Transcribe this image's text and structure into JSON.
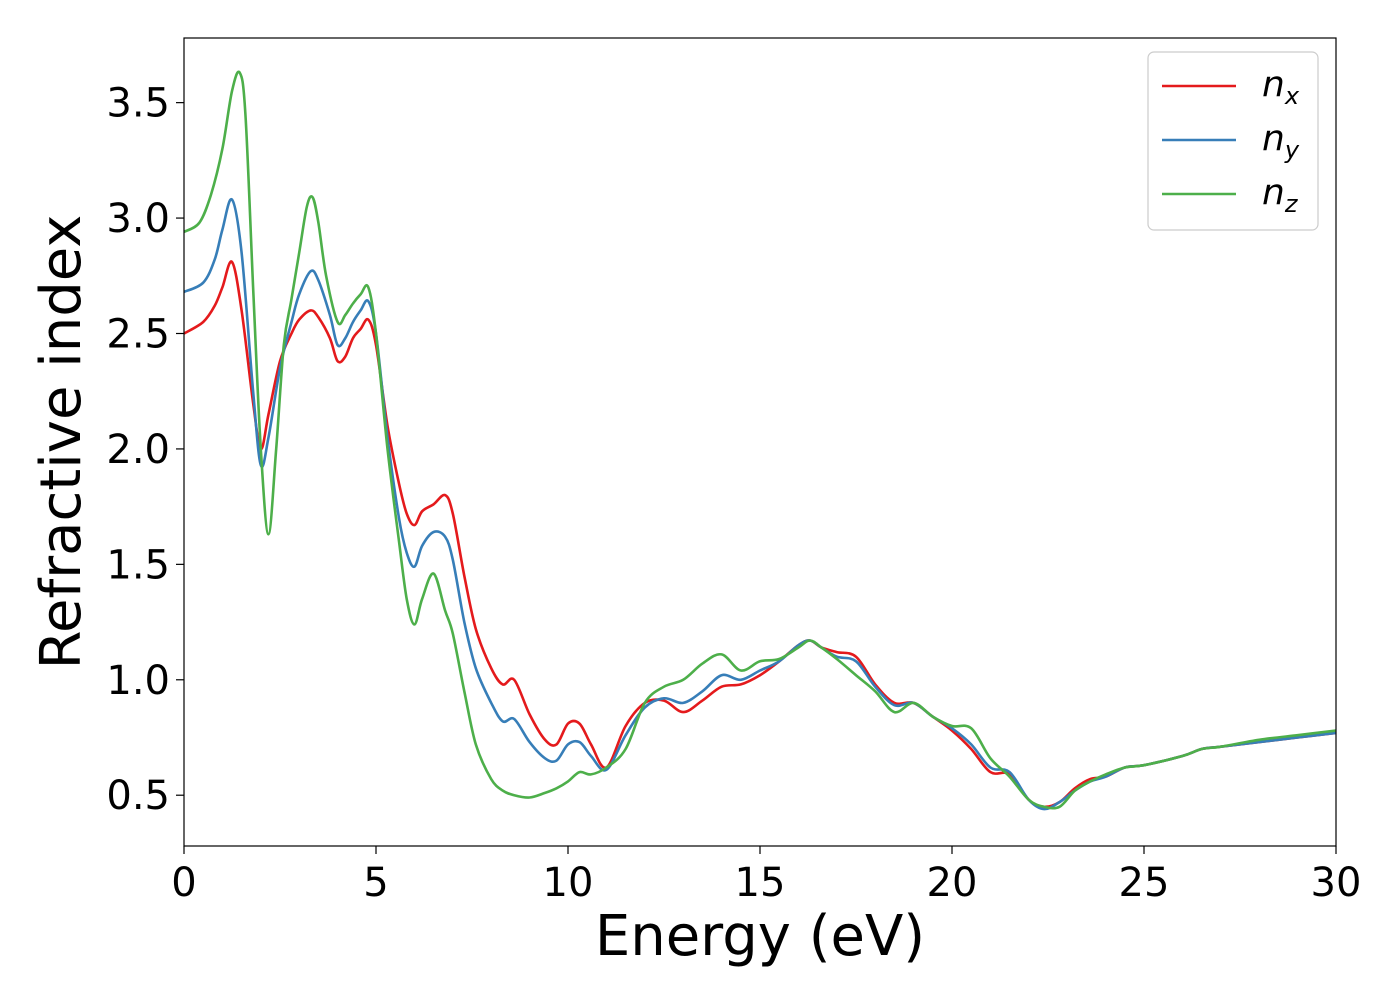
{
  "chart_data": {
    "type": "line",
    "xlabel": "Energy (eV)",
    "ylabel": "Refractive index",
    "xlim": [
      0,
      30
    ],
    "ylim": [
      0.28,
      3.78
    ],
    "xticks": [
      0,
      5,
      10,
      15,
      20,
      25,
      30
    ],
    "yticks": [
      0.5,
      1.0,
      1.5,
      2.0,
      2.5,
      3.0,
      3.5
    ],
    "grid": false,
    "legend_position": "top-right",
    "series": [
      {
        "name": "n",
        "subscript": "x",
        "color": "#e41a1c",
        "x": [
          0,
          0.5,
          0.8,
          1.0,
          1.25,
          1.5,
          1.8,
          2.0,
          2.2,
          2.5,
          2.8,
          3.0,
          3.3,
          3.5,
          3.8,
          4.0,
          4.2,
          4.4,
          4.6,
          4.8,
          5.0,
          5.3,
          5.6,
          5.8,
          6.0,
          6.2,
          6.5,
          6.8,
          7.0,
          7.3,
          7.6,
          8.0,
          8.3,
          8.6,
          9.0,
          9.4,
          9.7,
          10.0,
          10.3,
          10.6,
          11.0,
          11.5,
          12.0,
          12.5,
          13.0,
          13.5,
          14.0,
          14.5,
          15.0,
          15.5,
          16.0,
          16.3,
          16.6,
          17.0,
          17.5,
          18.0,
          18.5,
          19.0,
          19.5,
          20.0,
          20.5,
          21.0,
          21.5,
          22.0,
          22.4,
          22.8,
          23.2,
          23.6,
          24.0,
          24.5,
          25.0,
          26.0,
          26.5,
          27.0,
          28.0,
          29.0,
          30.0
        ],
        "y": [
          2.5,
          2.55,
          2.62,
          2.7,
          2.81,
          2.6,
          2.2,
          2.0,
          2.15,
          2.38,
          2.5,
          2.56,
          2.6,
          2.57,
          2.48,
          2.38,
          2.4,
          2.48,
          2.52,
          2.56,
          2.45,
          2.1,
          1.85,
          1.72,
          1.67,
          1.73,
          1.76,
          1.8,
          1.72,
          1.45,
          1.22,
          1.05,
          0.98,
          1.0,
          0.85,
          0.74,
          0.72,
          0.81,
          0.81,
          0.72,
          0.62,
          0.8,
          0.9,
          0.91,
          0.86,
          0.91,
          0.97,
          0.98,
          1.02,
          1.08,
          1.15,
          1.17,
          1.14,
          1.12,
          1.1,
          0.98,
          0.9,
          0.9,
          0.84,
          0.78,
          0.7,
          0.6,
          0.59,
          0.48,
          0.45,
          0.47,
          0.53,
          0.57,
          0.58,
          0.62,
          0.63,
          0.67,
          0.7,
          0.71,
          0.73,
          0.75,
          0.77
        ]
      },
      {
        "name": "n",
        "subscript": "y",
        "color": "#377eb8",
        "x": [
          0,
          0.5,
          0.8,
          1.0,
          1.25,
          1.5,
          1.8,
          2.0,
          2.2,
          2.5,
          2.8,
          3.0,
          3.3,
          3.5,
          3.8,
          4.0,
          4.2,
          4.4,
          4.6,
          4.8,
          5.0,
          5.3,
          5.6,
          5.8,
          6.0,
          6.2,
          6.5,
          6.8,
          7.0,
          7.3,
          7.6,
          8.0,
          8.3,
          8.6,
          9.0,
          9.4,
          9.7,
          10.0,
          10.3,
          10.6,
          11.0,
          11.5,
          12.0,
          12.5,
          13.0,
          13.5,
          14.0,
          14.5,
          15.0,
          15.5,
          16.0,
          16.3,
          16.6,
          17.0,
          17.5,
          18.0,
          18.5,
          19.0,
          19.5,
          20.0,
          20.5,
          21.0,
          21.5,
          22.0,
          22.4,
          22.8,
          23.2,
          23.6,
          24.0,
          24.5,
          25.0,
          26.0,
          26.5,
          27.0,
          28.0,
          29.0,
          30.0
        ],
        "y": [
          2.68,
          2.72,
          2.82,
          2.95,
          3.08,
          2.85,
          2.25,
          1.93,
          2.05,
          2.35,
          2.55,
          2.67,
          2.77,
          2.73,
          2.58,
          2.45,
          2.48,
          2.55,
          2.6,
          2.64,
          2.5,
          2.05,
          1.7,
          1.55,
          1.49,
          1.58,
          1.64,
          1.62,
          1.52,
          1.25,
          1.05,
          0.9,
          0.82,
          0.83,
          0.73,
          0.66,
          0.65,
          0.72,
          0.73,
          0.67,
          0.61,
          0.76,
          0.88,
          0.92,
          0.9,
          0.95,
          1.02,
          1.0,
          1.04,
          1.08,
          1.15,
          1.17,
          1.14,
          1.1,
          1.08,
          0.97,
          0.89,
          0.9,
          0.84,
          0.79,
          0.72,
          0.62,
          0.6,
          0.48,
          0.44,
          0.47,
          0.52,
          0.56,
          0.58,
          0.62,
          0.63,
          0.67,
          0.7,
          0.71,
          0.73,
          0.75,
          0.77
        ]
      },
      {
        "name": "n",
        "subscript": "z",
        "color": "#4daf4a",
        "x": [
          0,
          0.4,
          0.7,
          1.0,
          1.25,
          1.45,
          1.6,
          1.8,
          2.0,
          2.2,
          2.4,
          2.6,
          2.8,
          3.0,
          3.2,
          3.35,
          3.5,
          3.7,
          4.0,
          4.2,
          4.4,
          4.6,
          4.8,
          5.0,
          5.3,
          5.6,
          5.8,
          6.0,
          6.2,
          6.5,
          6.8,
          7.0,
          7.3,
          7.6,
          8.0,
          8.3,
          8.6,
          9.0,
          9.4,
          9.7,
          10.0,
          10.3,
          10.6,
          11.0,
          11.5,
          12.0,
          12.5,
          13.0,
          13.5,
          14.0,
          14.5,
          15.0,
          15.5,
          16.0,
          16.3,
          16.6,
          17.0,
          17.5,
          18.0,
          18.5,
          19.0,
          19.5,
          20.0,
          20.5,
          21.0,
          21.5,
          22.0,
          22.4,
          22.8,
          23.2,
          23.6,
          24.0,
          24.5,
          25.0,
          26.0,
          26.5,
          27.0,
          28.0,
          29.0,
          30.0
        ],
        "y": [
          2.94,
          2.98,
          3.1,
          3.3,
          3.55,
          3.63,
          3.45,
          2.7,
          2.0,
          1.63,
          2.0,
          2.45,
          2.65,
          2.85,
          3.05,
          3.09,
          2.98,
          2.75,
          2.55,
          2.58,
          2.63,
          2.67,
          2.7,
          2.5,
          2.0,
          1.6,
          1.35,
          1.24,
          1.35,
          1.46,
          1.3,
          1.2,
          0.95,
          0.72,
          0.57,
          0.52,
          0.5,
          0.49,
          0.51,
          0.53,
          0.56,
          0.6,
          0.59,
          0.62,
          0.7,
          0.9,
          0.97,
          1.0,
          1.07,
          1.11,
          1.04,
          1.08,
          1.09,
          1.14,
          1.17,
          1.14,
          1.09,
          1.02,
          0.95,
          0.86,
          0.9,
          0.84,
          0.8,
          0.79,
          0.66,
          0.58,
          0.48,
          0.45,
          0.45,
          0.52,
          0.56,
          0.59,
          0.62,
          0.63,
          0.67,
          0.7,
          0.71,
          0.74,
          0.76,
          0.78
        ]
      }
    ]
  }
}
